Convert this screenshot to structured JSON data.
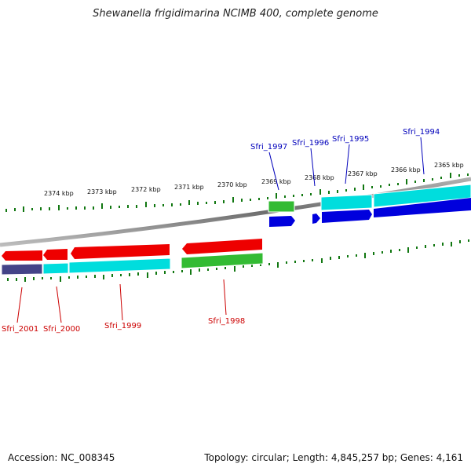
{
  "title": "Shewanella frigidimarina NCIMB 400, complete genome",
  "footer": {
    "accession": "Accession: NC_008345",
    "topology": "Topology: circular; Length: 4,845,257 bp; Genes: 4,161"
  },
  "colors": {
    "forward_gene": "#0000dd",
    "reverse_gene": "#ee0000",
    "forward_cds": "#00dddd",
    "reverse_cds": "#33bb33",
    "merged_cds": "#444488",
    "backbone": "#888888",
    "tick": "#117711",
    "forward_label": "#0000bb",
    "reverse_label": "#cc0000"
  },
  "kbp_ticks": [
    "2374 kbp",
    "2373 kbp",
    "2372 kbp",
    "2371 kbp",
    "2370 kbp",
    "2369 kbp",
    "2368 kbp",
    "2367 kbp",
    "2366 kbp",
    "2365 kbp"
  ],
  "forward_genes": [
    "Sfri_1997",
    "Sfri_1996",
    "Sfri_1995",
    "Sfri_1994"
  ],
  "reverse_genes": [
    "Sfri_2001",
    "Sfri_2000",
    "Sfri_1999",
    "Sfri_1998"
  ]
}
